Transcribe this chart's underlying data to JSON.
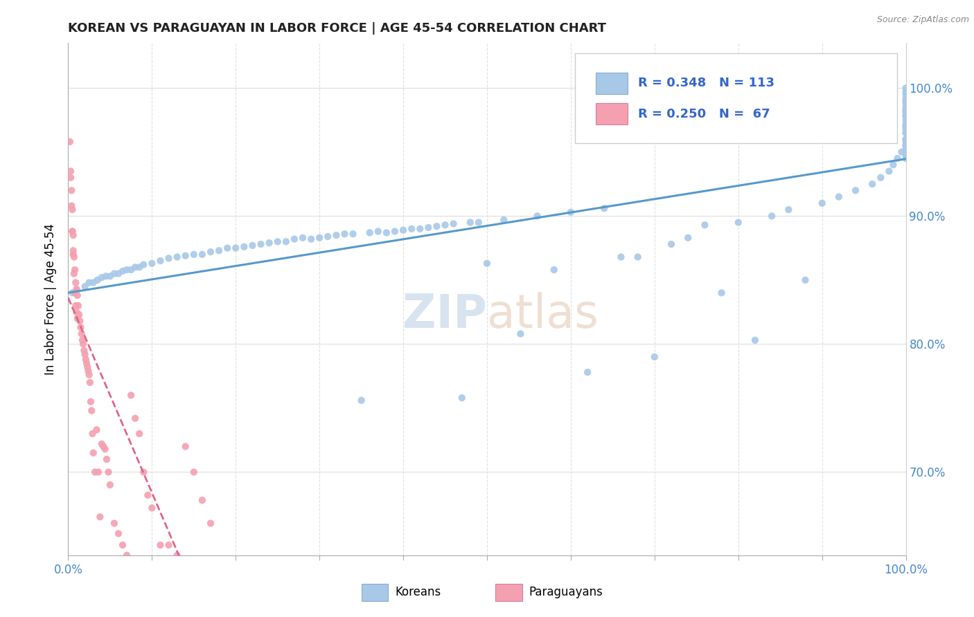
{
  "title": "KOREAN VS PARAGUAYAN IN LABOR FORCE | AGE 45-54 CORRELATION CHART",
  "source_text": "Source: ZipAtlas.com",
  "ylabel": "In Labor Force | Age 45-54",
  "ylabel_ticks": [
    "70.0%",
    "80.0%",
    "90.0%",
    "100.0%"
  ],
  "ylabel_tick_vals": [
    0.7,
    0.8,
    0.9,
    1.0
  ],
  "xmin": 0.0,
  "xmax": 1.0,
  "ymin": 0.635,
  "ymax": 1.035,
  "korean_color": "#a8c8e8",
  "paraguayan_color": "#f4a0b0",
  "korean_line_color": "#5599cc",
  "paraguayan_line_color": "#dd6688",
  "watermark_color": "#c8d8ea",
  "r_korean": 0.348,
  "n_korean": 113,
  "r_paraguayan": 0.25,
  "n_paraguayan": 67,
  "legend_box_color_korean": "#a8c8e8",
  "legend_box_color_paraguayan": "#f4a0b0",
  "legend_text_color": "#3366cc",
  "axis_label_color": "#4488cc",
  "korean_x": [
    0.005,
    0.01,
    0.02,
    0.025,
    0.03,
    0.035,
    0.04,
    0.045,
    0.05,
    0.055,
    0.06,
    0.065,
    0.07,
    0.075,
    0.08,
    0.085,
    0.09,
    0.1,
    0.11,
    0.12,
    0.13,
    0.14,
    0.15,
    0.16,
    0.17,
    0.18,
    0.19,
    0.2,
    0.21,
    0.22,
    0.23,
    0.24,
    0.25,
    0.26,
    0.27,
    0.28,
    0.29,
    0.3,
    0.31,
    0.32,
    0.33,
    0.34,
    0.35,
    0.36,
    0.37,
    0.38,
    0.39,
    0.4,
    0.41,
    0.42,
    0.43,
    0.44,
    0.45,
    0.46,
    0.47,
    0.48,
    0.49,
    0.5,
    0.52,
    0.54,
    0.56,
    0.58,
    0.6,
    0.62,
    0.64,
    0.66,
    0.68,
    0.7,
    0.72,
    0.74,
    0.76,
    0.78,
    0.8,
    0.82,
    0.84,
    0.86,
    0.88,
    0.9,
    0.92,
    0.94,
    0.96,
    0.97,
    0.98,
    0.985,
    0.99,
    0.995,
    1.0,
    1.0,
    1.0,
    1.0,
    1.0,
    1.0,
    1.0,
    1.0,
    1.0,
    1.0,
    1.0,
    1.0,
    1.0,
    1.0,
    1.0,
    1.0,
    1.0,
    1.0,
    1.0,
    1.0,
    1.0,
    1.0,
    1.0,
    1.0,
    1.0,
    1.0,
    1.0
  ],
  "korean_y": [
    0.84,
    0.842,
    0.845,
    0.848,
    0.848,
    0.85,
    0.852,
    0.853,
    0.853,
    0.855,
    0.855,
    0.857,
    0.858,
    0.858,
    0.86,
    0.86,
    0.862,
    0.863,
    0.865,
    0.867,
    0.868,
    0.869,
    0.87,
    0.87,
    0.872,
    0.873,
    0.875,
    0.875,
    0.876,
    0.877,
    0.878,
    0.879,
    0.88,
    0.88,
    0.882,
    0.883,
    0.882,
    0.883,
    0.884,
    0.885,
    0.886,
    0.886,
    0.756,
    0.887,
    0.888,
    0.887,
    0.888,
    0.889,
    0.89,
    0.89,
    0.891,
    0.892,
    0.893,
    0.894,
    0.758,
    0.895,
    0.895,
    0.863,
    0.897,
    0.808,
    0.9,
    0.858,
    0.903,
    0.778,
    0.906,
    0.868,
    0.868,
    0.79,
    0.878,
    0.883,
    0.893,
    0.84,
    0.895,
    0.803,
    0.9,
    0.905,
    0.85,
    0.91,
    0.915,
    0.92,
    0.925,
    0.93,
    0.935,
    0.94,
    0.945,
    0.95,
    0.955,
    0.96,
    0.965,
    0.968,
    0.97,
    0.972,
    0.975,
    0.978,
    0.98,
    0.982,
    0.985,
    0.988,
    0.99,
    0.992,
    0.995,
    0.997,
    1.0,
    0.978,
    0.983,
    0.97,
    0.965,
    0.96,
    0.958,
    0.955,
    0.952,
    0.948,
    0.945
  ],
  "paraguayan_x": [
    0.002,
    0.003,
    0.004,
    0.005,
    0.005,
    0.006,
    0.006,
    0.007,
    0.007,
    0.008,
    0.008,
    0.009,
    0.009,
    0.01,
    0.01,
    0.011,
    0.011,
    0.012,
    0.013,
    0.014,
    0.015,
    0.016,
    0.017,
    0.018,
    0.019,
    0.02,
    0.021,
    0.022,
    0.023,
    0.024,
    0.025,
    0.026,
    0.027,
    0.028,
    0.029,
    0.03,
    0.032,
    0.034,
    0.036,
    0.038,
    0.04,
    0.042,
    0.044,
    0.046,
    0.048,
    0.05,
    0.055,
    0.06,
    0.065,
    0.07,
    0.075,
    0.08,
    0.085,
    0.09,
    0.095,
    0.1,
    0.11,
    0.12,
    0.13,
    0.14,
    0.15,
    0.16,
    0.17,
    0.003,
    0.004,
    0.005,
    0.006
  ],
  "paraguayan_y": [
    0.958,
    0.935,
    0.92,
    0.905,
    0.888,
    0.873,
    0.885,
    0.855,
    0.868,
    0.84,
    0.858,
    0.83,
    0.848,
    0.825,
    0.843,
    0.82,
    0.838,
    0.83,
    0.823,
    0.818,
    0.813,
    0.808,
    0.803,
    0.8,
    0.795,
    0.792,
    0.788,
    0.785,
    0.782,
    0.779,
    0.776,
    0.77,
    0.755,
    0.748,
    0.73,
    0.715,
    0.7,
    0.733,
    0.7,
    0.665,
    0.722,
    0.72,
    0.718,
    0.71,
    0.7,
    0.69,
    0.66,
    0.652,
    0.643,
    0.635,
    0.76,
    0.742,
    0.73,
    0.7,
    0.682,
    0.672,
    0.643,
    0.643,
    0.635,
    0.72,
    0.7,
    0.678,
    0.66,
    0.93,
    0.908,
    0.888,
    0.87
  ]
}
